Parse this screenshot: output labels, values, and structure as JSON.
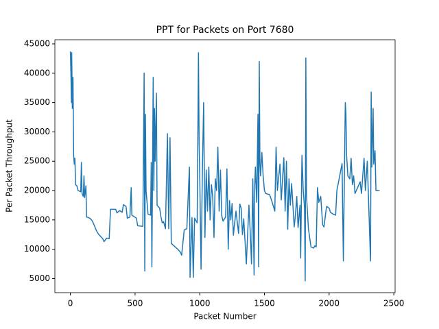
{
  "chart_data": {
    "type": "line",
    "title": "PPT for Packets on Port 7680",
    "xlabel": "Packet Number",
    "ylabel": "Per Packet Throughput",
    "color": "#1f77b4",
    "xlim": [
      -120,
      2510
    ],
    "ylim": [
      2600,
      45700
    ],
    "xticks": [
      0,
      500,
      1000,
      1500,
      2000,
      2500
    ],
    "yticks": [
      5000,
      10000,
      15000,
      20000,
      25000,
      30000,
      35000,
      40000,
      45000
    ],
    "x": [
      0,
      5,
      8,
      10,
      15,
      20,
      25,
      30,
      35,
      40,
      50,
      60,
      80,
      85,
      90,
      100,
      105,
      110,
      120,
      125,
      150,
      170,
      190,
      200,
      220,
      250,
      260,
      280,
      300,
      310,
      350,
      360,
      380,
      400,
      410,
      430,
      440,
      460,
      470,
      475,
      510,
      520,
      560,
      570,
      575,
      580,
      585,
      600,
      620,
      625,
      630,
      640,
      645,
      650,
      655,
      665,
      670,
      690,
      700,
      710,
      720,
      735,
      750,
      760,
      770,
      780,
      800,
      830,
      850,
      860,
      880,
      900,
      920,
      925,
      940,
      950,
      960,
      980,
      990,
      995,
      1000,
      1010,
      1020,
      1030,
      1040,
      1050,
      1060,
      1070,
      1080,
      1090,
      1100,
      1110,
      1120,
      1130,
      1140,
      1150,
      1160,
      1170,
      1180,
      1200,
      1210,
      1220,
      1230,
      1240,
      1250,
      1260,
      1270,
      1280,
      1300,
      1310,
      1320,
      1330,
      1340,
      1360,
      1380,
      1390,
      1400,
      1410,
      1420,
      1425,
      1430,
      1440,
      1450,
      1455,
      1460,
      1465,
      1470,
      1480,
      1490,
      1500,
      1510,
      1540,
      1560,
      1580,
      1590,
      1600,
      1620,
      1630,
      1650,
      1660,
      1670,
      1680,
      1690,
      1700,
      1710,
      1730,
      1740,
      1750,
      1760,
      1775,
      1780,
      1790,
      1800,
      1810,
      1815,
      1820,
      1825,
      1840,
      1860,
      1880,
      1890,
      1900,
      1910,
      1920,
      1935,
      1950,
      1960,
      1980,
      2000,
      2010,
      2030,
      2050,
      2060,
      2100,
      2110,
      2125,
      2130,
      2135,
      2145,
      2160,
      2170,
      2180,
      2190,
      2200,
      2240,
      2250,
      2270,
      2280,
      2295,
      2320,
      2325,
      2330,
      2340,
      2345,
      2355,
      2362,
      2390
    ],
    "values": [
      43700,
      39000,
      35000,
      43500,
      34000,
      39300,
      26000,
      24500,
      25500,
      21000,
      20800,
      20000,
      19800,
      24800,
      19500,
      19000,
      22500,
      18800,
      20800,
      15500,
      15300,
      14800,
      13800,
      13200,
      12500,
      11800,
      11300,
      11900,
      11800,
      16800,
      16800,
      16200,
      16600,
      16300,
      17600,
      17300,
      15300,
      15500,
      20500,
      15800,
      15300,
      14000,
      13900,
      40000,
      6300,
      33000,
      20000,
      16000,
      15800,
      24800,
      7000,
      39300,
      20000,
      34000,
      25000,
      36600,
      17500,
      17000,
      15500,
      14500,
      14700,
      13500,
      29700,
      13500,
      29000,
      11000,
      10600,
      10000,
      9500,
      9000,
      13300,
      13500,
      24000,
      5200,
      15400,
      5200,
      15300,
      14500,
      43500,
      28000,
      22500,
      6600,
      23000,
      35000,
      12000,
      23500,
      16500,
      24000,
      15000,
      21000,
      19000,
      12000,
      22000,
      20000,
      27400,
      16500,
      23500,
      15700,
      14800,
      15500,
      23700,
      10000,
      18300,
      15000,
      17800,
      12400,
      14500,
      16500,
      12700,
      17700,
      17000,
      12500,
      15200,
      7500,
      17500,
      13000,
      7500,
      22000,
      5600,
      21000,
      24000,
      18000,
      33000,
      7000,
      42000,
      25000,
      22500,
      26500,
      22500,
      20000,
      19500,
      19300,
      18000,
      16500,
      27400,
      20000,
      24500,
      18400,
      25600,
      16500,
      25000,
      13400,
      22000,
      17500,
      21200,
      13800,
      16000,
      19000,
      13700,
      17500,
      8500,
      26000,
      20000,
      17000,
      4600,
      42600,
      19200,
      13500,
      10400,
      10200,
      10600,
      10400,
      20500,
      18000,
      19000,
      14200,
      13800,
      17300,
      17000,
      16300,
      16000,
      15800,
      20000,
      24600,
      8000,
      35000,
      33000,
      26000,
      22500,
      22000,
      25500,
      21000,
      22500,
      19500,
      21500,
      19500,
      25500,
      20000,
      25000,
      8000,
      36800,
      24000,
      34000,
      24500,
      26800,
      20000,
      20000
    ]
  }
}
